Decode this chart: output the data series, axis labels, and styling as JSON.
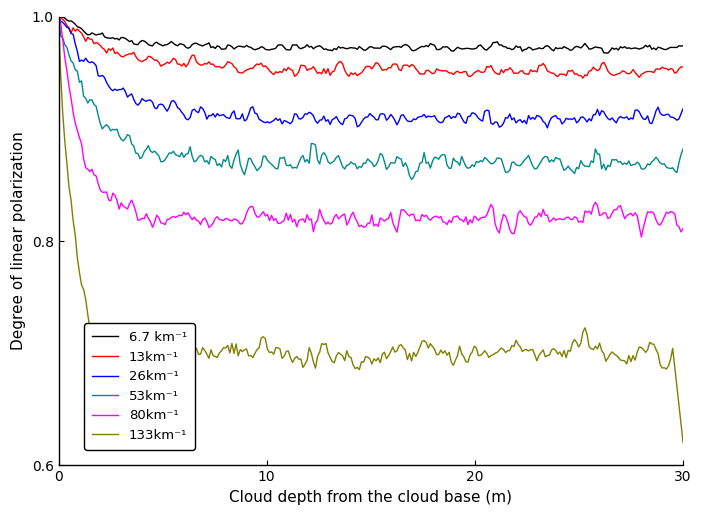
{
  "series": [
    {
      "label": "6.7 km⁻¹",
      "color": "#000000",
      "lw": 1.0,
      "asymptote": 0.972,
      "drop": 0.028,
      "decay": 0.4,
      "noise": 0.003
    },
    {
      "label": "13km⁻¹",
      "color": "#ff0000",
      "lw": 1.0,
      "asymptote": 0.952,
      "drop": 0.048,
      "decay": 0.35,
      "noise": 0.005
    },
    {
      "label": "26km⁻¹",
      "color": "#0000ff",
      "lw": 1.0,
      "asymptote": 0.91,
      "drop": 0.09,
      "decay": 0.45,
      "noise": 0.007
    },
    {
      "label": "53km⁻¹",
      "color": "#008b8b",
      "lw": 1.0,
      "asymptote": 0.87,
      "drop": 0.13,
      "decay": 0.6,
      "noise": 0.008
    },
    {
      "label": "80km⁻¹",
      "color": "#ff00ff",
      "lw": 1.0,
      "asymptote": 0.82,
      "drop": 0.18,
      "decay": 0.9,
      "noise": 0.009
    },
    {
      "label": "133km⁻¹",
      "color": "#808000",
      "lw": 1.0,
      "asymptote": 0.7,
      "drop": 0.3,
      "decay": 1.4,
      "noise": 0.01
    }
  ],
  "xlabel": "Cloud depth from the cloud base (m)",
  "ylabel": "Degree of linear polarization",
  "xlim": [
    0,
    30
  ],
  "ylim": [
    0.6,
    1.0
  ],
  "xticks": [
    0,
    10,
    20,
    30
  ],
  "yticks": [
    0.6,
    0.8,
    1.0
  ],
  "figsize": [
    7.03,
    5.16
  ],
  "dpi": 100
}
